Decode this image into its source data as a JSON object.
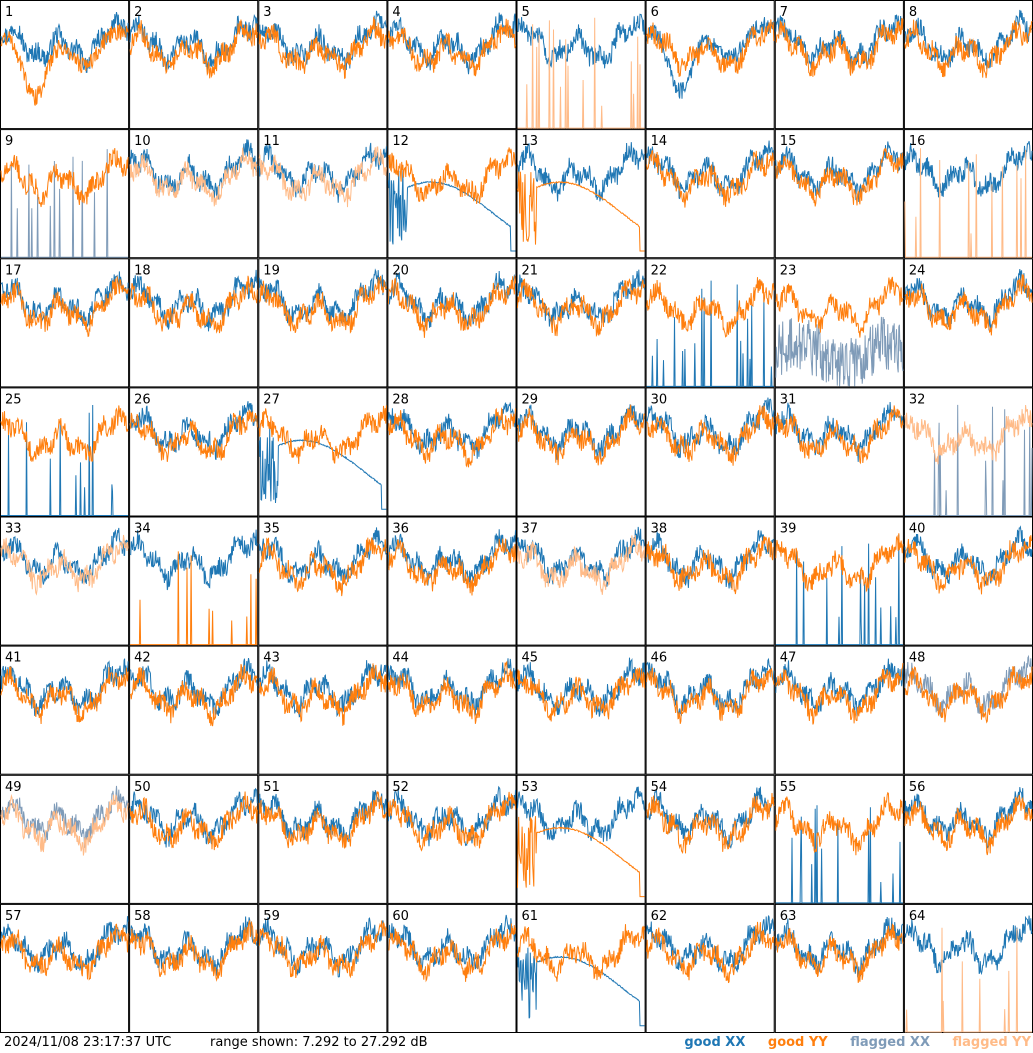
{
  "chart_data": {
    "type": "line",
    "layout": "8x8 small multiples",
    "timestamp": "2024/11/08 23:17:37 UTC",
    "range_text": "range shown: 7.292 to 27.292 dB",
    "ylim": [
      7.292,
      27.292
    ],
    "units": "dB",
    "legend": [
      "good XX",
      "good YY",
      "flagged XX",
      "flagged YY"
    ],
    "colors": {
      "good_xx": "#1f77b4",
      "good_yy": "#ff7f0e",
      "flagged_xx": "#7f9bb8",
      "flagged_yy": "#ffbb88"
    },
    "panels": [
      {
        "id": "1",
        "xx": "good",
        "yy": "good",
        "xx_shape": "normal",
        "yy_shape": "dip"
      },
      {
        "id": "2",
        "xx": "good",
        "yy": "good"
      },
      {
        "id": "3",
        "xx": "good",
        "yy": "good"
      },
      {
        "id": "4",
        "xx": "good",
        "yy": "good"
      },
      {
        "id": "5",
        "xx": "good",
        "yy": "flagged",
        "yy_shape": "spikes"
      },
      {
        "id": "6",
        "xx": "good",
        "yy": "good",
        "xx_shape": "dip"
      },
      {
        "id": "7",
        "xx": "good",
        "yy": "good"
      },
      {
        "id": "8",
        "xx": "good",
        "yy": "good"
      },
      {
        "id": "9",
        "xx": "flagged",
        "yy": "good",
        "xx_shape": "spikes"
      },
      {
        "id": "10",
        "xx": "good",
        "yy": "flagged"
      },
      {
        "id": "11",
        "xx": "good",
        "yy": "flagged"
      },
      {
        "id": "12",
        "xx": "good",
        "yy": "good",
        "xx_shape": "smooth"
      },
      {
        "id": "13",
        "xx": "good",
        "yy": "good",
        "yy_shape": "smooth"
      },
      {
        "id": "14",
        "xx": "good",
        "yy": "good"
      },
      {
        "id": "15",
        "xx": "good",
        "yy": "good"
      },
      {
        "id": "16",
        "xx": "good",
        "yy": "flagged",
        "yy_shape": "spikes"
      },
      {
        "id": "17",
        "xx": "good",
        "yy": "good"
      },
      {
        "id": "18",
        "xx": "good",
        "yy": "good"
      },
      {
        "id": "19",
        "xx": "good",
        "yy": "good"
      },
      {
        "id": "20",
        "xx": "good",
        "yy": "good"
      },
      {
        "id": "21",
        "xx": "good",
        "yy": "good"
      },
      {
        "id": "22",
        "xx": "good",
        "yy": "good",
        "xx_shape": "spikes"
      },
      {
        "id": "23",
        "xx": "flagged",
        "yy": "good",
        "xx_shape": "noisy"
      },
      {
        "id": "24",
        "xx": "good",
        "yy": "good"
      },
      {
        "id": "25",
        "xx": "good",
        "yy": "good",
        "xx_shape": "spikes"
      },
      {
        "id": "26",
        "xx": "good",
        "yy": "good"
      },
      {
        "id": "27",
        "xx": "good",
        "yy": "good",
        "xx_shape": "smooth"
      },
      {
        "id": "28",
        "xx": "good",
        "yy": "good"
      },
      {
        "id": "29",
        "xx": "good",
        "yy": "good"
      },
      {
        "id": "30",
        "xx": "good",
        "yy": "good"
      },
      {
        "id": "31",
        "xx": "good",
        "yy": "good"
      },
      {
        "id": "32",
        "xx": "flagged",
        "yy": "flagged",
        "xx_shape": "spikes"
      },
      {
        "id": "33",
        "xx": "good",
        "yy": "flagged"
      },
      {
        "id": "34",
        "xx": "good",
        "yy": "good",
        "yy_shape": "spikes"
      },
      {
        "id": "35",
        "xx": "good",
        "yy": "good"
      },
      {
        "id": "36",
        "xx": "good",
        "yy": "good"
      },
      {
        "id": "37",
        "xx": "good",
        "yy": "flagged"
      },
      {
        "id": "38",
        "xx": "good",
        "yy": "good"
      },
      {
        "id": "39",
        "xx": "good",
        "yy": "good",
        "xx_shape": "spikes"
      },
      {
        "id": "40",
        "xx": "good",
        "yy": "good"
      },
      {
        "id": "41",
        "xx": "good",
        "yy": "good"
      },
      {
        "id": "42",
        "xx": "good",
        "yy": "good"
      },
      {
        "id": "43",
        "xx": "good",
        "yy": "good"
      },
      {
        "id": "44",
        "xx": "good",
        "yy": "good"
      },
      {
        "id": "45",
        "xx": "good",
        "yy": "good"
      },
      {
        "id": "46",
        "xx": "good",
        "yy": "good"
      },
      {
        "id": "47",
        "xx": "good",
        "yy": "good"
      },
      {
        "id": "48",
        "xx": "flagged",
        "yy": "good"
      },
      {
        "id": "49",
        "xx": "flagged",
        "yy": "flagged"
      },
      {
        "id": "50",
        "xx": "good",
        "yy": "good"
      },
      {
        "id": "51",
        "xx": "good",
        "yy": "good"
      },
      {
        "id": "52",
        "xx": "good",
        "yy": "good"
      },
      {
        "id": "53",
        "xx": "good",
        "yy": "good",
        "yy_shape": "smooth"
      },
      {
        "id": "54",
        "xx": "good",
        "yy": "good"
      },
      {
        "id": "55",
        "xx": "good",
        "yy": "good",
        "xx_shape": "spikes"
      },
      {
        "id": "56",
        "xx": "good",
        "yy": "good"
      },
      {
        "id": "57",
        "xx": "good",
        "yy": "good"
      },
      {
        "id": "58",
        "xx": "good",
        "yy": "good"
      },
      {
        "id": "59",
        "xx": "good",
        "yy": "good"
      },
      {
        "id": "60",
        "xx": "good",
        "yy": "good"
      },
      {
        "id": "61",
        "xx": "good",
        "yy": "good",
        "xx_shape": "smooth"
      },
      {
        "id": "62",
        "xx": "good",
        "yy": "good"
      },
      {
        "id": "63",
        "xx": "good",
        "yy": "good"
      },
      {
        "id": "64",
        "xx": "good",
        "yy": "flagged",
        "yy_shape": "spikes"
      }
    ]
  }
}
